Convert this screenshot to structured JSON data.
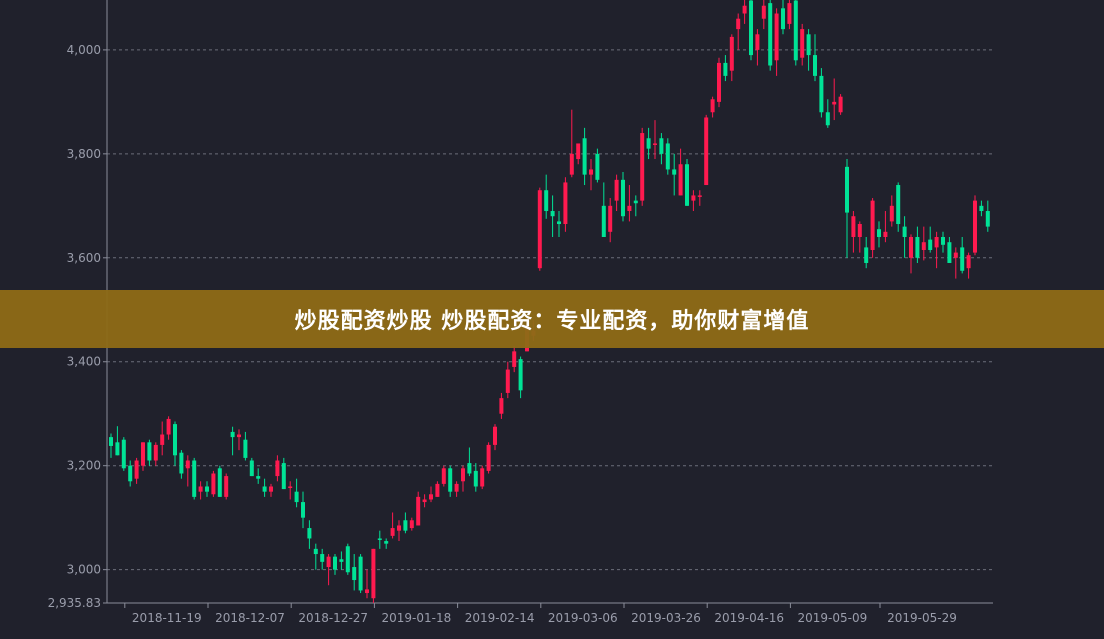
{
  "banner": {
    "text": "炒股配资炒股 炒股配资：专业配资，助你财富增值"
  },
  "chart_data": {
    "type": "candlestick",
    "colors": {
      "up": "#ff1a4f",
      "down": "#00e396",
      "background": "#20212c",
      "grid": "#6b6e7a",
      "axis": "#8a8d9a"
    },
    "ylim": [
      2935.83,
      4096
    ],
    "y_ticks": [
      "3,000",
      "3,200",
      "3,400",
      "3,600",
      "3,800",
      "4,000"
    ],
    "y_tick_values": [
      3000,
      3200,
      3400,
      3600,
      3800,
      4000
    ],
    "y_min_label": "2,935.83",
    "grid": "horizontal-dashed",
    "x_ticks": [
      {
        "label": "2018-11-19",
        "index": 2
      },
      {
        "label": "2018-12-07",
        "index": 15
      },
      {
        "label": "2018-12-27",
        "index": 28
      },
      {
        "label": "2019-01-18",
        "index": 41
      },
      {
        "label": "2019-02-14",
        "index": 54
      },
      {
        "label": "2019-03-06",
        "index": 67
      },
      {
        "label": "2019-03-26",
        "index": 80
      },
      {
        "label": "2019-04-16",
        "index": 93
      },
      {
        "label": "2019-05-09",
        "index": 106
      },
      {
        "label": "2019-05-29",
        "index": 120
      }
    ],
    "ohlc_fields": [
      "open",
      "high",
      "low",
      "close"
    ],
    "ohlc": [
      [
        3255,
        3262,
        3215,
        3238
      ],
      [
        3245,
        3276,
        3220,
        3220
      ],
      [
        3250,
        3255,
        3190,
        3195
      ],
      [
        3200,
        3210,
        3160,
        3170
      ],
      [
        3175,
        3215,
        3165,
        3210
      ],
      [
        3200,
        3245,
        3190,
        3245
      ],
      [
        3245,
        3250,
        3200,
        3210
      ],
      [
        3210,
        3245,
        3200,
        3240
      ],
      [
        3240,
        3285,
        3220,
        3260
      ],
      [
        3260,
        3295,
        3250,
        3290
      ],
      [
        3280,
        3285,
        3200,
        3220
      ],
      [
        3225,
        3230,
        3175,
        3185
      ],
      [
        3195,
        3220,
        3160,
        3210
      ],
      [
        3210,
        3215,
        3135,
        3140
      ],
      [
        3150,
        3170,
        3135,
        3160
      ],
      [
        3160,
        3170,
        3140,
        3150
      ],
      [
        3145,
        3190,
        3140,
        3185
      ],
      [
        3195,
        3200,
        3140,
        3140
      ],
      [
        3140,
        3185,
        3135,
        3180
      ],
      [
        3265,
        3275,
        3220,
        3255
      ],
      [
        3255,
        3270,
        3230,
        3260
      ],
      [
        3250,
        3265,
        3210,
        3215
      ],
      [
        3210,
        3215,
        3180,
        3180
      ],
      [
        3180,
        3195,
        3165,
        3175
      ],
      [
        3160,
        3175,
        3140,
        3150
      ],
      [
        3150,
        3165,
        3140,
        3160
      ],
      [
        3180,
        3220,
        3170,
        3210
      ],
      [
        3205,
        3215,
        3155,
        3155
      ],
      [
        3160,
        3170,
        3135,
        3160
      ],
      [
        3150,
        3175,
        3120,
        3130
      ],
      [
        3130,
        3150,
        3080,
        3100
      ],
      [
        3080,
        3095,
        3040,
        3060
      ],
      [
        3040,
        3050,
        3000,
        3030
      ],
      [
        3030,
        3040,
        3000,
        3015
      ],
      [
        3005,
        3030,
        2970,
        3025
      ],
      [
        3025,
        3030,
        2990,
        3000
      ],
      [
        3020,
        3035,
        3000,
        3015
      ],
      [
        3045,
        3050,
        2990,
        2995
      ],
      [
        3005,
        3030,
        2960,
        2980
      ],
      [
        3025,
        3030,
        2955,
        2960
      ],
      [
        2955,
        3000,
        2945,
        2962
      ],
      [
        2945,
        3040,
        2935.83,
        3040
      ],
      [
        3060,
        3075,
        3040,
        3058
      ],
      [
        3055,
        3060,
        3040,
        3050
      ],
      [
        3065,
        3110,
        3060,
        3080
      ],
      [
        3075,
        3095,
        3055,
        3085
      ],
      [
        3095,
        3110,
        3070,
        3075
      ],
      [
        3080,
        3100,
        3075,
        3095
      ],
      [
        3085,
        3150,
        3085,
        3140
      ],
      [
        3130,
        3145,
        3120,
        3135
      ],
      [
        3135,
        3160,
        3130,
        3145
      ],
      [
        3140,
        3170,
        3140,
        3165
      ],
      [
        3165,
        3200,
        3160,
        3195
      ],
      [
        3195,
        3200,
        3140,
        3150
      ],
      [
        3150,
        3170,
        3140,
        3165
      ],
      [
        3170,
        3200,
        3150,
        3195
      ],
      [
        3205,
        3235,
        3180,
        3185
      ],
      [
        3190,
        3205,
        3150,
        3160
      ],
      [
        3160,
        3200,
        3155,
        3195
      ],
      [
        3190,
        3245,
        3185,
        3240
      ],
      [
        3240,
        3280,
        3230,
        3275
      ],
      [
        3300,
        3340,
        3290,
        3330
      ],
      [
        3340,
        3400,
        3330,
        3385
      ],
      [
        3390,
        3430,
        3380,
        3420
      ],
      [
        3405,
        3410,
        3330,
        3345
      ],
      [
        3420,
        3480,
        3420,
        3470
      ],
      [
        3450,
        3480,
        3440,
        3460
      ],
      [
        3580,
        3735,
        3575,
        3730
      ],
      [
        3730,
        3760,
        3675,
        3690
      ],
      [
        3690,
        3720,
        3640,
        3680
      ],
      [
        3670,
        3690,
        3640,
        3665
      ],
      [
        3665,
        3755,
        3650,
        3745
      ],
      [
        3760,
        3885,
        3755,
        3800
      ],
      [
        3790,
        3810,
        3780,
        3820
      ],
      [
        3830,
        3850,
        3740,
        3760
      ],
      [
        3760,
        3790,
        3730,
        3770
      ],
      [
        3800,
        3810,
        3745,
        3750
      ],
      [
        3700,
        3745,
        3640,
        3640
      ],
      [
        3650,
        3715,
        3630,
        3700
      ],
      [
        3710,
        3760,
        3690,
        3750
      ],
      [
        3750,
        3765,
        3670,
        3680
      ],
      [
        3690,
        3740,
        3670,
        3700
      ],
      [
        3710,
        3720,
        3680,
        3705
      ],
      [
        3710,
        3850,
        3700,
        3840
      ],
      [
        3830,
        3850,
        3790,
        3810
      ],
      [
        3820,
        3865,
        3790,
        3820
      ],
      [
        3830,
        3840,
        3780,
        3800
      ],
      [
        3820,
        3830,
        3760,
        3770
      ],
      [
        3770,
        3800,
        3720,
        3760
      ],
      [
        3720,
        3810,
        3720,
        3780
      ],
      [
        3780,
        3790,
        3700,
        3700
      ],
      [
        3710,
        3730,
        3690,
        3720
      ],
      [
        3720,
        3730,
        3700,
        3720
      ],
      [
        3740,
        3875,
        3740,
        3870
      ],
      [
        3880,
        3910,
        3870,
        3905
      ],
      [
        3900,
        3985,
        3890,
        3975
      ],
      [
        3975,
        3990,
        3940,
        3950
      ],
      [
        3960,
        4030,
        3940,
        4025
      ],
      [
        4040,
        4070,
        4000,
        4060
      ],
      [
        4070,
        4110,
        4050,
        4085
      ],
      [
        4095,
        4110,
        3980,
        3990
      ],
      [
        4000,
        4040,
        3970,
        4030
      ],
      [
        4060,
        4100,
        4040,
        4085
      ],
      [
        4090,
        4110,
        3960,
        3970
      ],
      [
        3980,
        4080,
        3950,
        4070
      ],
      [
        4080,
        4100,
        4030,
        4040
      ],
      [
        4050,
        4100,
        4040,
        4090
      ],
      [
        4095,
        4100,
        3970,
        3980
      ],
      [
        3985,
        4050,
        3970,
        4040
      ],
      [
        4030,
        4040,
        3960,
        3990
      ],
      [
        3990,
        4030,
        3940,
        3950
      ],
      [
        3950,
        3965,
        3870,
        3880
      ],
      [
        3880,
        3905,
        3850,
        3855
      ],
      [
        3895,
        3945,
        3865,
        3900
      ],
      [
        3880,
        3915,
        3875,
        3910
      ],
      [
        3775,
        3790,
        3600,
        3687
      ],
      [
        3640,
        3690,
        3610,
        3680
      ],
      [
        3640,
        3670,
        3610,
        3665
      ],
      [
        3620,
        3640,
        3580,
        3590
      ],
      [
        3615,
        3715,
        3600,
        3710
      ],
      [
        3655,
        3670,
        3620,
        3640
      ],
      [
        3640,
        3690,
        3630,
        3650
      ],
      [
        3670,
        3720,
        3660,
        3700
      ],
      [
        3740,
        3745,
        3650,
        3665
      ],
      [
        3660,
        3680,
        3600,
        3640
      ],
      [
        3600,
        3645,
        3570,
        3640
      ],
      [
        3640,
        3660,
        3590,
        3600
      ],
      [
        3615,
        3660,
        3595,
        3630
      ],
      [
        3635,
        3660,
        3610,
        3615
      ],
      [
        3620,
        3650,
        3580,
        3640
      ],
      [
        3640,
        3650,
        3610,
        3625
      ],
      [
        3630,
        3640,
        3590,
        3590
      ],
      [
        3600,
        3620,
        3560,
        3610
      ],
      [
        3620,
        3640,
        3570,
        3575
      ],
      [
        3580,
        3610,
        3560,
        3605
      ],
      [
        3610,
        3720,
        3605,
        3710
      ],
      [
        3700,
        3710,
        3680,
        3690
      ],
      [
        3690,
        3710,
        3650,
        3660
      ]
    ]
  }
}
